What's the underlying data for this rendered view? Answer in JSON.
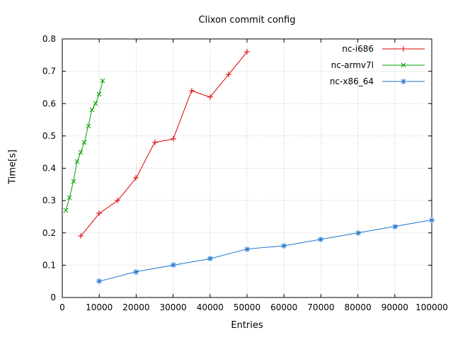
{
  "chart_data": {
    "type": "line",
    "title": "Clixon commit config",
    "xlabel": "Entries",
    "ylabel": "Time[s]",
    "xlim": [
      0,
      100000
    ],
    "ylim": [
      0,
      0.8
    ],
    "x_ticks": [
      0,
      10000,
      20000,
      30000,
      40000,
      50000,
      60000,
      70000,
      80000,
      90000,
      100000
    ],
    "y_ticks": [
      0,
      0.1,
      0.2,
      0.3,
      0.4,
      0.5,
      0.6,
      0.7,
      0.8
    ],
    "grid": true,
    "grid_color": "#c8c8c8",
    "axis_color": "#000000",
    "background": "#ffffff",
    "legend_position": "top-right",
    "series": [
      {
        "name": "nc-i686",
        "color": "#dd0000",
        "marker": "plus",
        "x": [
          5000,
          10000,
          15000,
          20000,
          25000,
          30000,
          35000,
          40000,
          45000,
          50000
        ],
        "y": [
          0.19,
          0.26,
          0.3,
          0.37,
          0.48,
          0.49,
          0.64,
          0.62,
          0.69,
          0.76
        ]
      },
      {
        "name": "nc-armv7l",
        "color": "#00a000",
        "marker": "cross",
        "x": [
          1000,
          2000,
          3000,
          4000,
          5000,
          6000,
          7000,
          8000,
          9000,
          10000,
          11000
        ],
        "y": [
          0.27,
          0.31,
          0.36,
          0.42,
          0.45,
          0.48,
          0.53,
          0.58,
          0.6,
          0.63,
          0.67
        ]
      },
      {
        "name": "nc-x86_64",
        "color": "#1874cd",
        "marker": "asterisk",
        "x": [
          10000,
          20000,
          30000,
          40000,
          50000,
          60000,
          70000,
          80000,
          90000,
          100000
        ],
        "y": [
          0.05,
          0.08,
          0.1,
          0.12,
          0.15,
          0.16,
          0.18,
          0.2,
          0.22,
          0.24
        ]
      }
    ]
  }
}
